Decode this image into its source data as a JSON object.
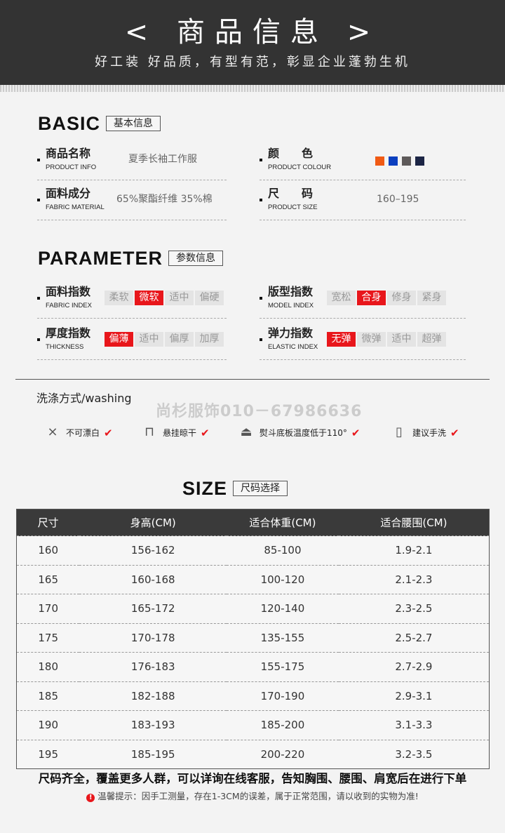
{
  "banner": {
    "title": "< 商品信息 >",
    "subtitle": "好工装 好品质，有型有范，彰显企业蓬勃生机"
  },
  "basic": {
    "title": "BASIC",
    "tag": "基本信息",
    "product_info": {
      "cn": "商品名称",
      "en": "PRODUCT INFO",
      "value": "夏季长袖工作服"
    },
    "fabric_material": {
      "cn": "面料成分",
      "en": "FABRIC MATERIAL",
      "value": "65%聚酯纤维 35%棉"
    },
    "product_colour": {
      "cn": "颜　　色",
      "en": "PRODUCT COLOUR",
      "colors": [
        "#f05a14",
        "#0b3fbf",
        "#5e5a5a",
        "#1c2545"
      ]
    },
    "product_size": {
      "cn": "尺　　码",
      "en": "PRODUCT SIZE",
      "value": "160–195"
    }
  },
  "parameter": {
    "title": "PARAMETER",
    "tag": "参数信息",
    "fabric_index": {
      "cn": "面料指数",
      "en": "FABRIC INDEX",
      "options": [
        "柔软",
        "微软",
        "适中",
        "偏硬"
      ],
      "selected": 1
    },
    "model_index": {
      "cn": "版型指数",
      "en": "MODEL INDEX",
      "options": [
        "宽松",
        "合身",
        "修身",
        "紧身"
      ],
      "selected": 1
    },
    "thickness": {
      "cn": "厚度指数",
      "en": "THICKNESS",
      "options": [
        "偏薄",
        "适中",
        "偏厚",
        "加厚"
      ],
      "selected": 0
    },
    "elastic_index": {
      "cn": "弹力指数",
      "en": "ELASTIC INDEX",
      "options": [
        "无弹",
        "微弹",
        "适中",
        "超弹"
      ],
      "selected": 0
    }
  },
  "washing": {
    "title": "洗涤方式/washing",
    "watermark": "尚杉服饰010－67986636",
    "items": [
      {
        "icon": "no-bleach-icon",
        "label": "不可漂白"
      },
      {
        "icon": "hang-dry-icon",
        "label": "悬挂晾干"
      },
      {
        "icon": "iron-icon",
        "label": "熨斗底板温度低于110°"
      },
      {
        "icon": "hand-wash-icon",
        "label": "建议手洗"
      }
    ]
  },
  "size": {
    "title": "SIZE",
    "tag": "尺码选择",
    "headers": [
      "尺寸",
      "身高(CM)",
      "适合体重(CM)",
      "适合腰围(CM)"
    ],
    "rows": [
      [
        "160",
        "156-162",
        "85-100",
        "1.9-2.1"
      ],
      [
        "165",
        "160-168",
        "100-120",
        "2.1-2.3"
      ],
      [
        "170",
        "165-172",
        "120-140",
        "2.3-2.5"
      ],
      [
        "175",
        "170-178",
        "135-155",
        "2.5-2.7"
      ],
      [
        "180",
        "176-183",
        "155-175",
        "2.7-2.9"
      ],
      [
        "185",
        "182-188",
        "170-190",
        "2.9-3.1"
      ],
      [
        "190",
        "183-193",
        "185-200",
        "3.1-3.3"
      ],
      [
        "195",
        "185-195",
        "200-220",
        "3.2-3.5"
      ]
    ]
  },
  "notes": {
    "main": "尺码齐全，覆盖更多人群，可以详询在线客服，告知胸围、腰围、肩宽后在进行下单",
    "tip": "温馨提示：因手工测量，存在1-3CM的误差，属于正常范围，请以收到的实物为准!"
  }
}
